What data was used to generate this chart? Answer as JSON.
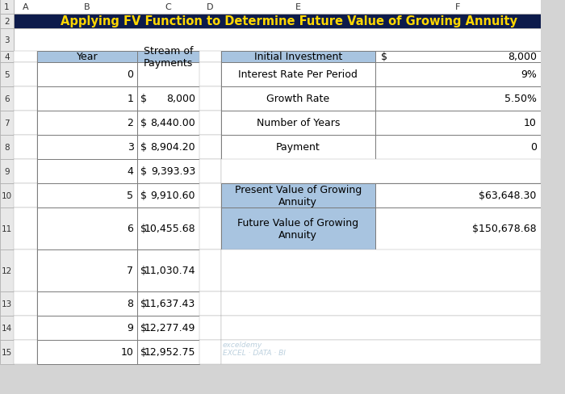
{
  "title": "Applying FV Function to Determine Future Value of Growing Annuity",
  "title_bg": "#0d1b4b",
  "title_fg": "#ffd700",
  "header_bg": "#a8c4e0",
  "cell_bg": "#ffffff",
  "right_header_bg": "#a8c4e0",
  "grid_color": "#7a7a7a",
  "row_num_color": "#c0c0c0",
  "left_table_headers": [
    "Year",
    "Stream of\nPayments"
  ],
  "left_rows": [
    [
      "0",
      "",
      ""
    ],
    [
      "1",
      "$",
      "8,000"
    ],
    [
      "2",
      "$",
      "8,440.00"
    ],
    [
      "3",
      "$",
      "8,904.20"
    ],
    [
      "4",
      "$",
      "9,393.93"
    ],
    [
      "5",
      "$",
      "9,910.60"
    ],
    [
      "6",
      "$",
      "10,455.68"
    ],
    [
      "7",
      "$",
      "11,030.74"
    ],
    [
      "8",
      "$",
      "11,637.43"
    ],
    [
      "9",
      "$",
      "12,277.49"
    ],
    [
      "10",
      "$",
      "12,952.75"
    ]
  ],
  "right_table_upper": [
    [
      "Initial Investment",
      "$",
      "8,000"
    ],
    [
      "Interest Rate Per Period",
      "",
      "9%"
    ],
    [
      "Growth Rate",
      "",
      "5.50%"
    ],
    [
      "Number of Years",
      "",
      "10"
    ],
    [
      "Payment",
      "",
      "0"
    ]
  ],
  "right_table_lower": [
    [
      "Present Value of Growing\nAnnuity",
      "",
      "$63,648.30"
    ],
    [
      "Future Value of Growing\nAnnuity",
      "",
      "$150,678.68"
    ]
  ],
  "row_labels": [
    "1",
    "2",
    "3",
    "4",
    "5",
    "6",
    "7",
    "8",
    "9",
    "10",
    "11",
    "12",
    "13",
    "14",
    "15"
  ],
  "col_labels": [
    "A",
    "B",
    "C",
    "D",
    "E",
    "F"
  ],
  "watermark": "exceldemy\nEXCEL · DATA · BI"
}
